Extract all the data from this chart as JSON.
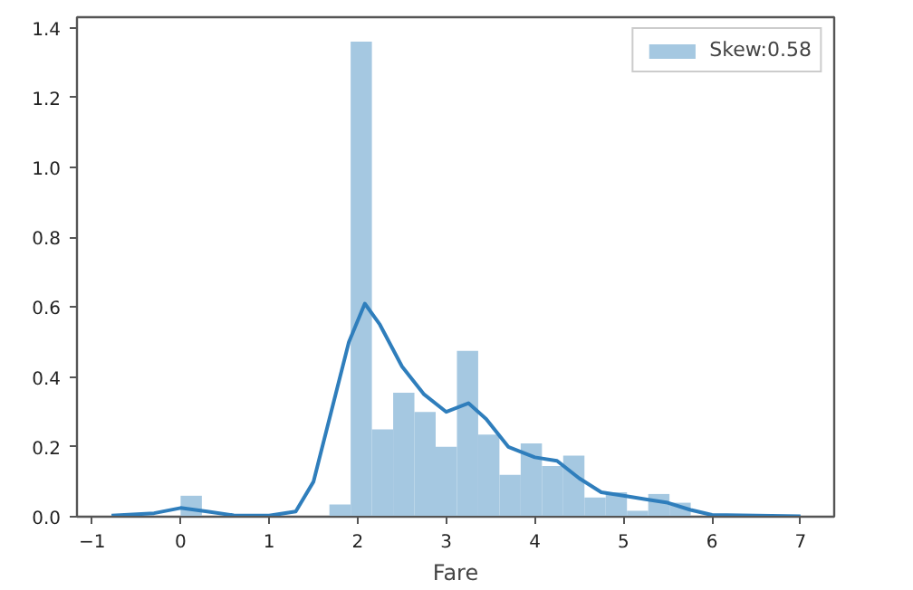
{
  "chart_data": {
    "type": "histogram",
    "xlabel": "Fare",
    "bins": [
      0,
      0.24,
      0.48,
      0.72,
      0.96,
      1.2,
      1.44,
      1.68,
      1.92,
      2.16,
      2.4,
      2.64,
      2.88,
      3.12,
      3.36,
      3.6,
      3.84,
      4.08,
      4.32,
      4.56,
      4.8,
      5.04,
      5.28,
      5.52,
      5.76
    ],
    "series": [
      {
        "name": "Skew:0.58",
        "color": "#a5c8e1",
        "values": [
          0.06,
          0,
          0,
          0,
          0,
          0,
          0,
          0.035,
          1.36,
          0.25,
          0.355,
          0.3,
          0.2,
          0.475,
          0.235,
          0.12,
          0.21,
          0.145,
          0.175,
          0.055,
          0.07,
          0.017,
          0.065,
          0.04
        ]
      },
      {
        "type": "line",
        "color": "#2f7ebc",
        "x": [
          -0.78,
          -0.3,
          0,
          0.3,
          0.6,
          1.0,
          1.3,
          1.5,
          1.7,
          1.9,
          2.08,
          2.25,
          2.5,
          2.75,
          3.0,
          3.25,
          3.45,
          3.7,
          4.0,
          4.25,
          4.5,
          4.75,
          5.0,
          5.25,
          5.5,
          5.75,
          6.0,
          6.5,
          7.0
        ],
        "values": [
          0.003,
          0.01,
          0.025,
          0.015,
          0.004,
          0.003,
          0.015,
          0.1,
          0.3,
          0.5,
          0.61,
          0.55,
          0.43,
          0.35,
          0.3,
          0.325,
          0.28,
          0.2,
          0.17,
          0.16,
          0.11,
          0.07,
          0.06,
          0.05,
          0.04,
          0.02,
          0.005,
          0.003,
          0.001
        ]
      }
    ],
    "xlim": [
      -1.17,
      7.38
    ],
    "ylim": [
      0,
      1.43
    ],
    "xticks": [
      {
        "value": -1,
        "label": "−1"
      },
      0,
      1,
      2,
      3,
      4,
      5,
      6,
      7
    ],
    "yticks": [
      {
        "value": 0,
        "label": "0.0"
      },
      0.2,
      0.4,
      0.6,
      0.8,
      {
        "value": 1,
        "label": "1.0"
      },
      1.2,
      1.4
    ],
    "grid": false,
    "legend": "top right"
  }
}
